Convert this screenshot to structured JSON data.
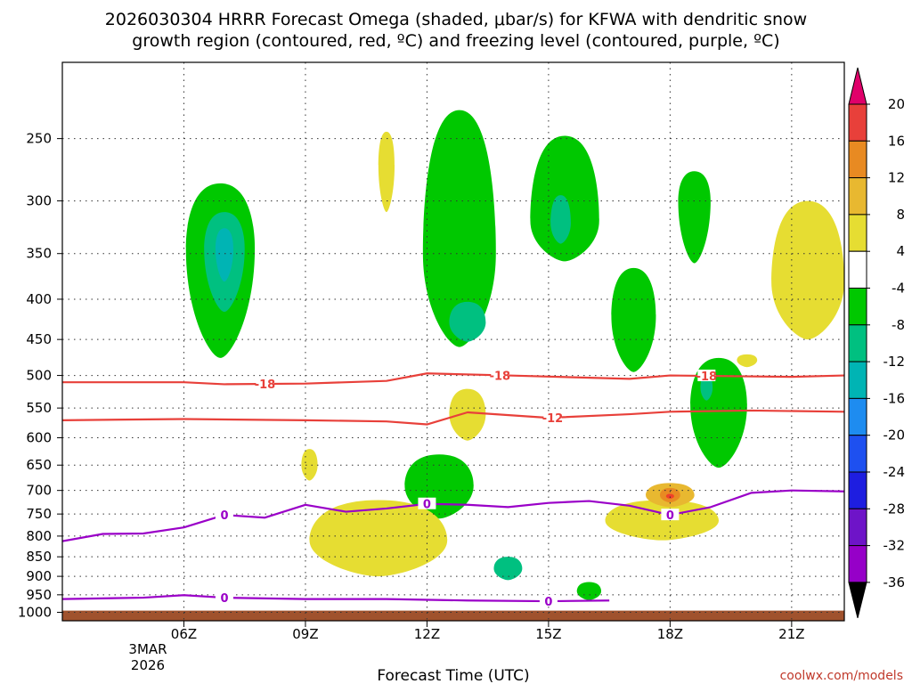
{
  "chart_data": {
    "type": "time-height-contour",
    "title_line1": "2026030304 HRRR Forecast Omega (shaded, μbar/s) for KFWA with dendritic snow",
    "title_line2": "growth region (contoured, red, ºC) and freezing level (contoured, purple, ºC)",
    "xlabel": "Forecast Time (UTC)",
    "date_label": [
      "3MAR",
      "2026"
    ],
    "credit": "coolwx.com/models",
    "x_range_hours": [
      3.0,
      22.3
    ],
    "x_ticks": [
      {
        "hour": 6,
        "label": "06Z"
      },
      {
        "hour": 9,
        "label": "09Z"
      },
      {
        "hour": 12,
        "label": "12Z"
      },
      {
        "hour": 15,
        "label": "15Z"
      },
      {
        "hour": 18,
        "label": "18Z"
      },
      {
        "hour": 21,
        "label": "21Z"
      }
    ],
    "y_ticks_hpa": [
      250,
      300,
      350,
      400,
      450,
      500,
      550,
      600,
      650,
      700,
      750,
      800,
      850,
      900,
      950,
      1000
    ],
    "colorbar_labels": [
      "20",
      "16",
      "12",
      "8",
      "4",
      "-4",
      "-8",
      "-12",
      "-16",
      "-20",
      "-24",
      "-28",
      "-32",
      "-36"
    ],
    "colorbar_colors": [
      "#f0d72a",
      "#e8b830",
      "#e88a22",
      "#f0402a",
      "#e0006a"
    ],
    "colorbar_neg_colors": [
      "#00c800",
      "#00c080",
      "#00b4b4",
      "#1e8cf0",
      "#1e50f0",
      "#1e1ee0",
      "#6e14c8",
      "#9600c8",
      "#aaaaaa",
      "#000000"
    ],
    "temp_contours": [
      {
        "label": "-18",
        "color": "#e8403a",
        "points": [
          [
            3.0,
            510
          ],
          [
            6.0,
            510
          ],
          [
            7.0,
            513
          ],
          [
            9.0,
            512
          ],
          [
            11.0,
            508
          ],
          [
            12.0,
            497
          ],
          [
            14.0,
            500
          ],
          [
            17.0,
            505
          ],
          [
            18.0,
            500
          ],
          [
            21.0,
            502
          ],
          [
            22.3,
            500
          ]
        ],
        "label_hours": [
          8.0,
          13.8,
          18.9
        ]
      },
      {
        "label": "-12",
        "color": "#e8403a",
        "points": [
          [
            3.0,
            570
          ],
          [
            6.0,
            568
          ],
          [
            9.0,
            570
          ],
          [
            11.0,
            572
          ],
          [
            12.0,
            577
          ],
          [
            13.0,
            557
          ],
          [
            15.0,
            566
          ],
          [
            17.0,
            560
          ],
          [
            18.0,
            556
          ],
          [
            20.0,
            554
          ],
          [
            22.3,
            556
          ]
        ],
        "label_hours": [
          15.1
        ]
      }
    ],
    "freezing_contours": [
      {
        "label": "0",
        "color": "#9a00c8",
        "points": [
          [
            3.0,
            812
          ],
          [
            4.0,
            795
          ],
          [
            5.0,
            794
          ],
          [
            6.0,
            780
          ],
          [
            7.0,
            752
          ],
          [
            8.0,
            758
          ],
          [
            9.0,
            730
          ],
          [
            10.0,
            745
          ],
          [
            11.0,
            738
          ],
          [
            12.0,
            728
          ],
          [
            13.0,
            730
          ],
          [
            14.0,
            735
          ],
          [
            15.0,
            726
          ],
          [
            16.0,
            722
          ],
          [
            17.0,
            732
          ],
          [
            18.0,
            752
          ],
          [
            19.0,
            735
          ],
          [
            20.0,
            705
          ],
          [
            21.0,
            700
          ],
          [
            22.3,
            702
          ]
        ],
        "label_hours": [
          7.0,
          12.0,
          18.0
        ]
      },
      {
        "label": "0",
        "color": "#9a00c8",
        "points": [
          [
            3.0,
            962
          ],
          [
            5.0,
            958
          ],
          [
            6.0,
            951
          ],
          [
            7.0,
            958
          ],
          [
            9.0,
            962
          ],
          [
            11.0,
            962
          ],
          [
            13.0,
            966
          ],
          [
            15.0,
            968
          ],
          [
            16.5,
            966
          ]
        ],
        "label_hours": [
          7.0,
          15.0
        ]
      }
    ],
    "omega_regions": [
      {
        "level": "-4",
        "color": "#00c800",
        "center_hour": 6.9,
        "center_hpa": 345,
        "spread_hours": 0.85,
        "spread_hpa_top": 60,
        "spread_hpa_bottom": 130
      },
      {
        "level": "-8",
        "color": "#00c080",
        "center_hour": 7.0,
        "center_hpa": 345,
        "spread_hours": 0.5,
        "spread_hpa_top": 35,
        "spread_hpa_bottom": 70
      },
      {
        "level": "-12",
        "color": "#00b4b4",
        "center_hour": 7.0,
        "center_hpa": 345,
        "spread_hours": 0.22,
        "spread_hpa_top": 20,
        "spread_hpa_bottom": 35
      },
      {
        "level": "-4",
        "color": "#00c800",
        "center_hour": 12.8,
        "center_hpa": 350,
        "spread_hours": 0.9,
        "spread_hpa_top": 120,
        "spread_hpa_bottom": 110
      },
      {
        "level": "-8",
        "color": "#00c080",
        "center_hour": 13.0,
        "center_hpa": 428,
        "spread_hours": 0.45,
        "spread_hpa_top": 25,
        "spread_hpa_bottom": 25
      },
      {
        "level": "-4",
        "color": "#00c800",
        "center_hour": 15.4,
        "center_hpa": 318,
        "spread_hours": 0.85,
        "spread_hpa_top": 70,
        "spread_hpa_bottom": 40
      },
      {
        "level": "-8",
        "color": "#00c080",
        "center_hour": 15.3,
        "center_hpa": 320,
        "spread_hours": 0.25,
        "spread_hpa_top": 25,
        "spread_hpa_bottom": 20
      },
      {
        "level": "-4",
        "color": "#00c800",
        "center_hour": 17.1,
        "center_hpa": 420,
        "spread_hours": 0.55,
        "spread_hpa_top": 55,
        "spread_hpa_bottom": 75
      },
      {
        "level": "-4",
        "color": "#00c800",
        "center_hour": 18.6,
        "center_hpa": 300,
        "spread_hours": 0.4,
        "spread_hpa_top": 25,
        "spread_hpa_bottom": 60
      },
      {
        "level": "-4",
        "color": "#00c800",
        "center_hour": 19.2,
        "center_hpa": 545,
        "spread_hours": 0.7,
        "spread_hpa_top": 70,
        "spread_hpa_bottom": 110
      },
      {
        "level": "-8",
        "color": "#00c080",
        "center_hour": 18.9,
        "center_hpa": 518,
        "spread_hours": 0.15,
        "spread_hpa_top": 20,
        "spread_hpa_bottom": 20
      },
      {
        "level": "-4",
        "color": "#00c800",
        "center_hour": 12.3,
        "center_hpa": 690,
        "spread_hours": 0.85,
        "spread_hpa_top": 60,
        "spread_hpa_bottom": 70
      },
      {
        "level": "-8",
        "color": "#00c080",
        "center_hour": 14.0,
        "center_hpa": 880,
        "spread_hours": 0.35,
        "spread_hpa_top": 30,
        "spread_hpa_bottom": 30
      },
      {
        "level": "-4",
        "color": "#00c800",
        "center_hour": 16.0,
        "center_hpa": 940,
        "spread_hours": 0.3,
        "spread_hpa_top": 25,
        "spread_hpa_bottom": 25
      },
      {
        "level": "4",
        "color": "#e6dd32",
        "center_hour": 11.0,
        "center_hpa": 270,
        "spread_hours": 0.2,
        "spread_hpa_top": 25,
        "spread_hpa_bottom": 40
      },
      {
        "level": "4",
        "color": "#e6dd32",
        "center_hour": 13.0,
        "center_hpa": 560,
        "spread_hours": 0.45,
        "spread_hpa_top": 40,
        "spread_hpa_bottom": 45
      },
      {
        "level": "4",
        "color": "#e6dd32",
        "center_hour": 10.8,
        "center_hpa": 810,
        "spread_hours": 1.7,
        "spread_hpa_top": 90,
        "spread_hpa_bottom": 90
      },
      {
        "level": "4",
        "color": "#e6dd32",
        "center_hour": 9.1,
        "center_hpa": 650,
        "spread_hours": 0.2,
        "spread_hpa_top": 30,
        "spread_hpa_bottom": 30
      },
      {
        "level": "4",
        "color": "#e6dd32",
        "center_hour": 17.8,
        "center_hpa": 765,
        "spread_hours": 1.4,
        "spread_hpa_top": 45,
        "spread_hpa_bottom": 45
      },
      {
        "level": "8",
        "color": "#e8b830",
        "center_hour": 18.0,
        "center_hpa": 710,
        "spread_hours": 0.6,
        "spread_hpa_top": 25,
        "spread_hpa_bottom": 25
      },
      {
        "level": "12",
        "color": "#e88a22",
        "center_hour": 18.0,
        "center_hpa": 710,
        "spread_hours": 0.25,
        "spread_hpa_top": 15,
        "spread_hpa_bottom": 15
      },
      {
        "level": "16",
        "color": "#f0402a",
        "center_hour": 18.0,
        "center_hpa": 712,
        "spread_hours": 0.1,
        "spread_hpa_top": 5,
        "spread_hpa_bottom": 5
      },
      {
        "level": "4",
        "color": "#e6dd32",
        "center_hour": 21.4,
        "center_hpa": 380,
        "spread_hours": 0.9,
        "spread_hpa_top": 80,
        "spread_hpa_bottom": 70
      },
      {
        "level": "4",
        "color": "#e6dd32",
        "center_hour": 19.9,
        "center_hpa": 478,
        "spread_hours": 0.25,
        "spread_hpa_top": 8,
        "spread_hpa_bottom": 10
      }
    ],
    "ground_color": "#a0522d"
  }
}
